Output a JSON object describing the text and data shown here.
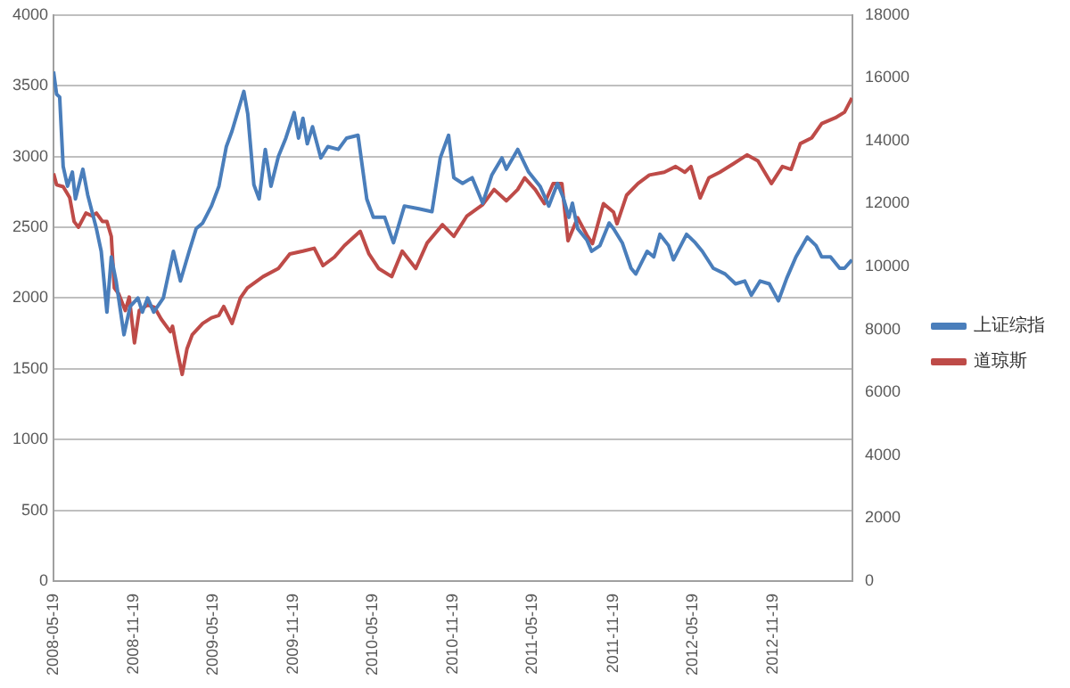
{
  "chart_data": {
    "type": "line",
    "xlim": [
      "2008-05-19",
      "2013-05-19"
    ],
    "xticks": [
      "2008-05-19",
      "2008-11-19",
      "2009-05-19",
      "2009-11-19",
      "2010-05-19",
      "2010-11-19",
      "2011-05-19",
      "2011-11-19",
      "2012-05-19",
      "2012-11-19"
    ],
    "ylim": [
      0,
      4000
    ],
    "yticks": [
      0,
      500,
      1000,
      1500,
      2000,
      2500,
      3000,
      3500,
      4000
    ],
    "y2lim": [
      0,
      18000
    ],
    "y2ticks": [
      0,
      2000,
      4000,
      6000,
      8000,
      10000,
      12000,
      14000,
      16000,
      18000
    ],
    "grid": "y",
    "legend": "right",
    "marker": "none",
    "line_style": "solid",
    "series": [
      {
        "name": "上证综指",
        "color": "#4a7ebb",
        "x": [
          "2008-05-19",
          "2008-05-26",
          "2008-06-02",
          "2008-06-10",
          "2008-06-20",
          "2008-07-01",
          "2008-07-08",
          "2008-07-25",
          "2008-08-05",
          "2008-08-25",
          "2008-09-05",
          "2008-09-18",
          "2008-09-28",
          "2008-10-09",
          "2008-10-27",
          "2008-11-10",
          "2008-11-28",
          "2008-12-08",
          "2008-12-20",
          "2009-01-03",
          "2009-01-25",
          "2009-02-17",
          "2009-03-05",
          "2009-03-25",
          "2009-04-10",
          "2009-04-25",
          "2009-05-15",
          "2009-06-01",
          "2009-06-18",
          "2009-07-01",
          "2009-07-28",
          "2009-08-06",
          "2009-08-20",
          "2009-09-01",
          "2009-09-15",
          "2009-09-28",
          "2009-10-15",
          "2009-11-01",
          "2009-11-20",
          "2009-11-30",
          "2009-12-10",
          "2009-12-20",
          "2010-01-01",
          "2010-01-20",
          "2010-02-05",
          "2010-03-01",
          "2010-03-20",
          "2010-04-15",
          "2010-05-05",
          "2010-05-20",
          "2010-06-15",
          "2010-07-05",
          "2010-07-30",
          "2010-09-01",
          "2010-10-01",
          "2010-10-20",
          "2010-11-08",
          "2010-11-20",
          "2010-12-10",
          "2011-01-01",
          "2011-01-25",
          "2011-02-15",
          "2011-03-10",
          "2011-03-20",
          "2011-04-15",
          "2011-05-10",
          "2011-06-05",
          "2011-06-25",
          "2011-07-15",
          "2011-07-28",
          "2011-08-10",
          "2011-08-18",
          "2011-08-30",
          "2011-09-20",
          "2011-10-01",
          "2011-10-20",
          "2011-11-10",
          "2011-11-20",
          "2011-12-10",
          "2011-12-30",
          "2012-01-10",
          "2012-02-05",
          "2012-02-20",
          "2012-03-05",
          "2012-03-25",
          "2012-04-05",
          "2012-05-05",
          "2012-05-25",
          "2012-06-10",
          "2012-07-05",
          "2012-08-01",
          "2012-08-25",
          "2012-09-15",
          "2012-09-30",
          "2012-10-20",
          "2012-11-10",
          "2012-12-01",
          "2012-12-20",
          "2013-01-10",
          "2013-02-05",
          "2013-02-25",
          "2013-03-10",
          "2013-03-30",
          "2013-04-20",
          "2013-05-01",
          "2013-05-18"
        ],
        "values": [
          3600,
          3440,
          3420,
          2930,
          2790,
          2890,
          2700,
          2910,
          2730,
          2490,
          2330,
          1900,
          2290,
          2120,
          1740,
          1940,
          2000,
          1900,
          2000,
          1900,
          2000,
          2330,
          2120,
          2330,
          2490,
          2530,
          2650,
          2790,
          3070,
          3180,
          3460,
          3300,
          2800,
          2700,
          3050,
          2790,
          3000,
          3130,
          3310,
          3130,
          3270,
          3090,
          3210,
          2990,
          3070,
          3050,
          3130,
          3150,
          2700,
          2570,
          2570,
          2390,
          2650,
          2630,
          2610,
          2990,
          3150,
          2850,
          2810,
          2850,
          2670,
          2870,
          2990,
          2910,
          3050,
          2890,
          2790,
          2650,
          2810,
          2710,
          2570,
          2670,
          2490,
          2410,
          2330,
          2370,
          2530,
          2490,
          2390,
          2210,
          2170,
          2330,
          2290,
          2450,
          2370,
          2270,
          2450,
          2390,
          2330,
          2210,
          2170,
          2100,
          2120,
          2020,
          2120,
          2100,
          1980,
          2140,
          2290,
          2430,
          2370,
          2290,
          2290,
          2210,
          2210,
          2270
        ]
      },
      {
        "name": "道琼斯",
        "color": "#be4b48",
        "axis": "y2",
        "x": [
          "2008-05-19",
          "2008-05-26",
          "2008-06-10",
          "2008-06-25",
          "2008-07-05",
          "2008-07-15",
          "2008-08-01",
          "2008-08-15",
          "2008-08-25",
          "2008-09-08",
          "2008-09-18",
          "2008-09-28",
          "2008-10-05",
          "2008-10-15",
          "2008-10-30",
          "2008-11-08",
          "2008-11-20",
          "2008-12-01",
          "2008-12-20",
          "2009-01-05",
          "2009-01-20",
          "2009-02-10",
          "2009-02-15",
          "2009-02-25",
          "2009-03-09",
          "2009-03-20",
          "2009-04-01",
          "2009-04-25",
          "2009-05-15",
          "2009-06-01",
          "2009-06-12",
          "2009-07-01",
          "2009-07-20",
          "2009-08-05",
          "2009-09-10",
          "2009-10-15",
          "2009-11-10",
          "2009-12-10",
          "2010-01-05",
          "2010-01-25",
          "2010-02-20",
          "2010-03-15",
          "2010-04-20",
          "2010-05-10",
          "2010-06-01",
          "2010-07-01",
          "2010-07-25",
          "2010-08-25",
          "2010-09-20",
          "2010-10-25",
          "2010-11-20",
          "2010-12-20",
          "2011-01-25",
          "2011-02-20",
          "2011-03-20",
          "2011-04-15",
          "2011-05-01",
          "2011-05-25",
          "2011-06-15",
          "2011-07-05",
          "2011-07-25",
          "2011-08-08",
          "2011-08-30",
          "2011-09-20",
          "2011-10-03",
          "2011-10-28",
          "2011-11-20",
          "2011-11-28",
          "2011-12-20",
          "2012-01-15",
          "2012-02-10",
          "2012-03-15",
          "2012-04-10",
          "2012-05-01",
          "2012-05-15",
          "2012-06-05",
          "2012-06-25",
          "2012-07-20",
          "2012-08-20",
          "2012-09-20",
          "2012-10-15",
          "2012-11-15",
          "2012-12-10",
          "2012-12-30",
          "2013-01-20",
          "2013-02-15",
          "2013-03-10",
          "2013-04-10",
          "2013-05-01",
          "2013-05-18"
        ],
        "values": [
          12960,
          12600,
          12540,
          12190,
          11430,
          11250,
          11700,
          11610,
          11700,
          11430,
          11430,
          10960,
          9320,
          9130,
          8600,
          9030,
          7570,
          8600,
          8780,
          8700,
          8330,
          7930,
          8100,
          7370,
          6570,
          7380,
          7830,
          8190,
          8370,
          8450,
          8730,
          8190,
          9000,
          9320,
          9680,
          9940,
          10400,
          10490,
          10580,
          10030,
          10300,
          10670,
          11120,
          10400,
          9940,
          9680,
          10490,
          9940,
          10750,
          11330,
          10960,
          11610,
          11970,
          12450,
          12090,
          12450,
          12820,
          12450,
          12000,
          12640,
          12640,
          10820,
          11550,
          11000,
          10730,
          12000,
          11730,
          11360,
          12270,
          12640,
          12910,
          13000,
          13180,
          13000,
          13180,
          12180,
          12820,
          13000,
          13270,
          13550,
          13360,
          12640,
          13180,
          13090,
          13910,
          14090,
          14550,
          14730,
          14910,
          15360
        ]
      }
    ]
  }
}
